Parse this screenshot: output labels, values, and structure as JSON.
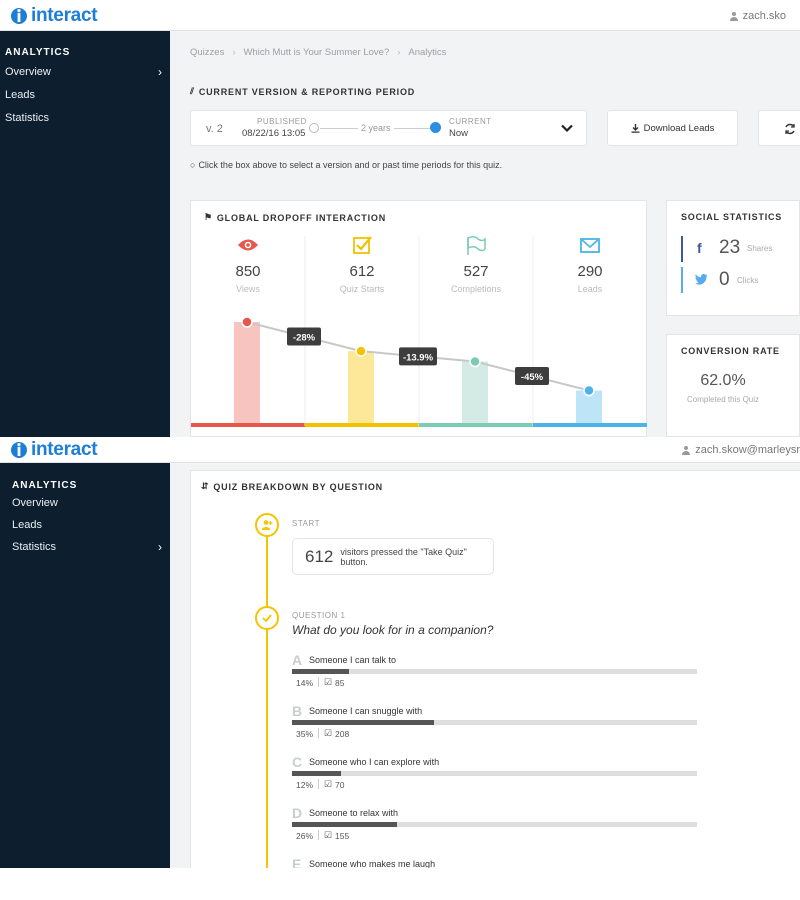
{
  "app": {
    "logo_text": "interact"
  },
  "shot1": {
    "user": "zach.sko",
    "sidebar": {
      "heading": "ANALYTICS",
      "items": [
        {
          "label": "Overview"
        },
        {
          "label": "Leads"
        },
        {
          "label": "Statistics"
        }
      ]
    },
    "breadcrumbs": [
      "Quizzes",
      "Which Mutt is Your Summer Love?",
      "Analytics"
    ],
    "version_section": {
      "title": "CURRENT VERSION & REPORTING PERIOD",
      "version": "v. 2",
      "published_label": "PUBLISHED",
      "published_date": "08/22/16 13:05",
      "period": "2 years",
      "current_label": "CURRENT",
      "current_value": "Now",
      "hint": "Click the box above to select a version and or past time periods for this quiz."
    },
    "download_leads": "Download Leads",
    "dropoff": {
      "title": "GLOBAL DROPOFF INTERACTION",
      "stats": [
        {
          "value": "850",
          "label": "Views",
          "icon": "eye-icon",
          "color": "#e8574c"
        },
        {
          "value": "612",
          "label": "Quiz Starts",
          "icon": "check-square-icon",
          "color": "#f2c200"
        },
        {
          "value": "527",
          "label": "Completions",
          "icon": "flag-icon",
          "color": "#7ccbb5"
        },
        {
          "value": "290",
          "label": "Leads",
          "icon": "envelope-icon",
          "color": "#4bb3e6"
        }
      ],
      "drops": [
        "-28%",
        "-13.9%",
        "-45%"
      ],
      "bar_colors": [
        "#f7c4c0",
        "#fde89a",
        "#d3ebe4",
        "#bde5f7"
      ],
      "underline_colors": [
        "#e8574c",
        "#f2c200",
        "#7ccbb5",
        "#4bb3e6"
      ]
    },
    "social": {
      "title": "SOCIAL STATISTICS",
      "facebook": {
        "value": "23",
        "label": "Shares"
      },
      "twitter": {
        "value": "0",
        "label": "Clicks"
      }
    },
    "conversion": {
      "title": "CONVERSION RATE",
      "value": "62.0%",
      "label": "Completed this Quiz"
    }
  },
  "shot2": {
    "user": "zach.skow@marleysr",
    "sidebar": {
      "heading": "ANALYTICS",
      "items": [
        {
          "label": "Overview"
        },
        {
          "label": "Leads"
        },
        {
          "label": "Statistics"
        }
      ]
    },
    "breakdown": {
      "title": "QUIZ BREAKDOWN BY QUESTION",
      "start_label": "START",
      "start_count": "612",
      "start_text": "visitors pressed the \"Take Quiz\" button.",
      "question_label": "QUESTION 1",
      "question_text": "What do you look for in a companion?",
      "answers": [
        {
          "letter": "A",
          "text": "Someone I can talk to",
          "percent": "14%",
          "count": "85",
          "fraction": 0.14
        },
        {
          "letter": "B",
          "text": "Someone I can snuggle with",
          "percent": "35%",
          "count": "208",
          "fraction": 0.35
        },
        {
          "letter": "C",
          "text": "Someone who I can explore with",
          "percent": "12%",
          "count": "70",
          "fraction": 0.12
        },
        {
          "letter": "D",
          "text": "Someone to relax with",
          "percent": "26%",
          "count": "155",
          "fraction": 0.26
        },
        {
          "letter": "E",
          "text": "Someone who makes me laugh",
          "percent": "",
          "count": "",
          "fraction": 0
        }
      ]
    }
  }
}
